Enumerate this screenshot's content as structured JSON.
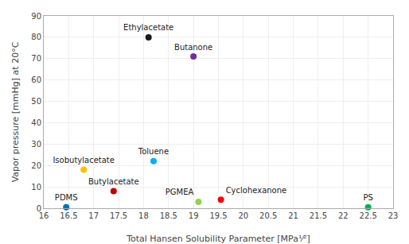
{
  "chart_data": {
    "type": "scatter",
    "x": [
      18.1,
      19.0,
      18.2,
      16.8,
      17.4,
      19.1,
      19.55,
      16.45,
      22.5
    ],
    "values": [
      80,
      71,
      22,
      18,
      8,
      3,
      4,
      0.5,
      0.5
    ],
    "colors": [
      "#1a1a1a",
      "#7030a0",
      "#00b0f0",
      "#ffc000",
      "#c00000",
      "#92d050",
      "#ff0000",
      "#0070c0",
      "#00b050"
    ],
    "annotations": [
      "Ethylacetate",
      "Butanone",
      "Toluene",
      "Isobutylacetate",
      "Butylacetate",
      "PGMEA",
      "Cyclohexanone",
      "PDMS",
      "PS"
    ],
    "xlabel": "Total Hansen Solubility Parameter [MPa¹⁄²]",
    "ylabel": "Vapor pressure [mmHg] at 20°C",
    "xlim": [
      16,
      23
    ],
    "ylim": [
      0,
      90
    ],
    "xticks": [
      16,
      16.5,
      17,
      17.5,
      18,
      18.5,
      19,
      19.5,
      20,
      20.5,
      21,
      21.5,
      22,
      22.5,
      23
    ],
    "yticks": [
      0,
      10,
      20,
      30,
      40,
      50,
      60,
      70,
      80,
      90
    ],
    "grid": true
  }
}
